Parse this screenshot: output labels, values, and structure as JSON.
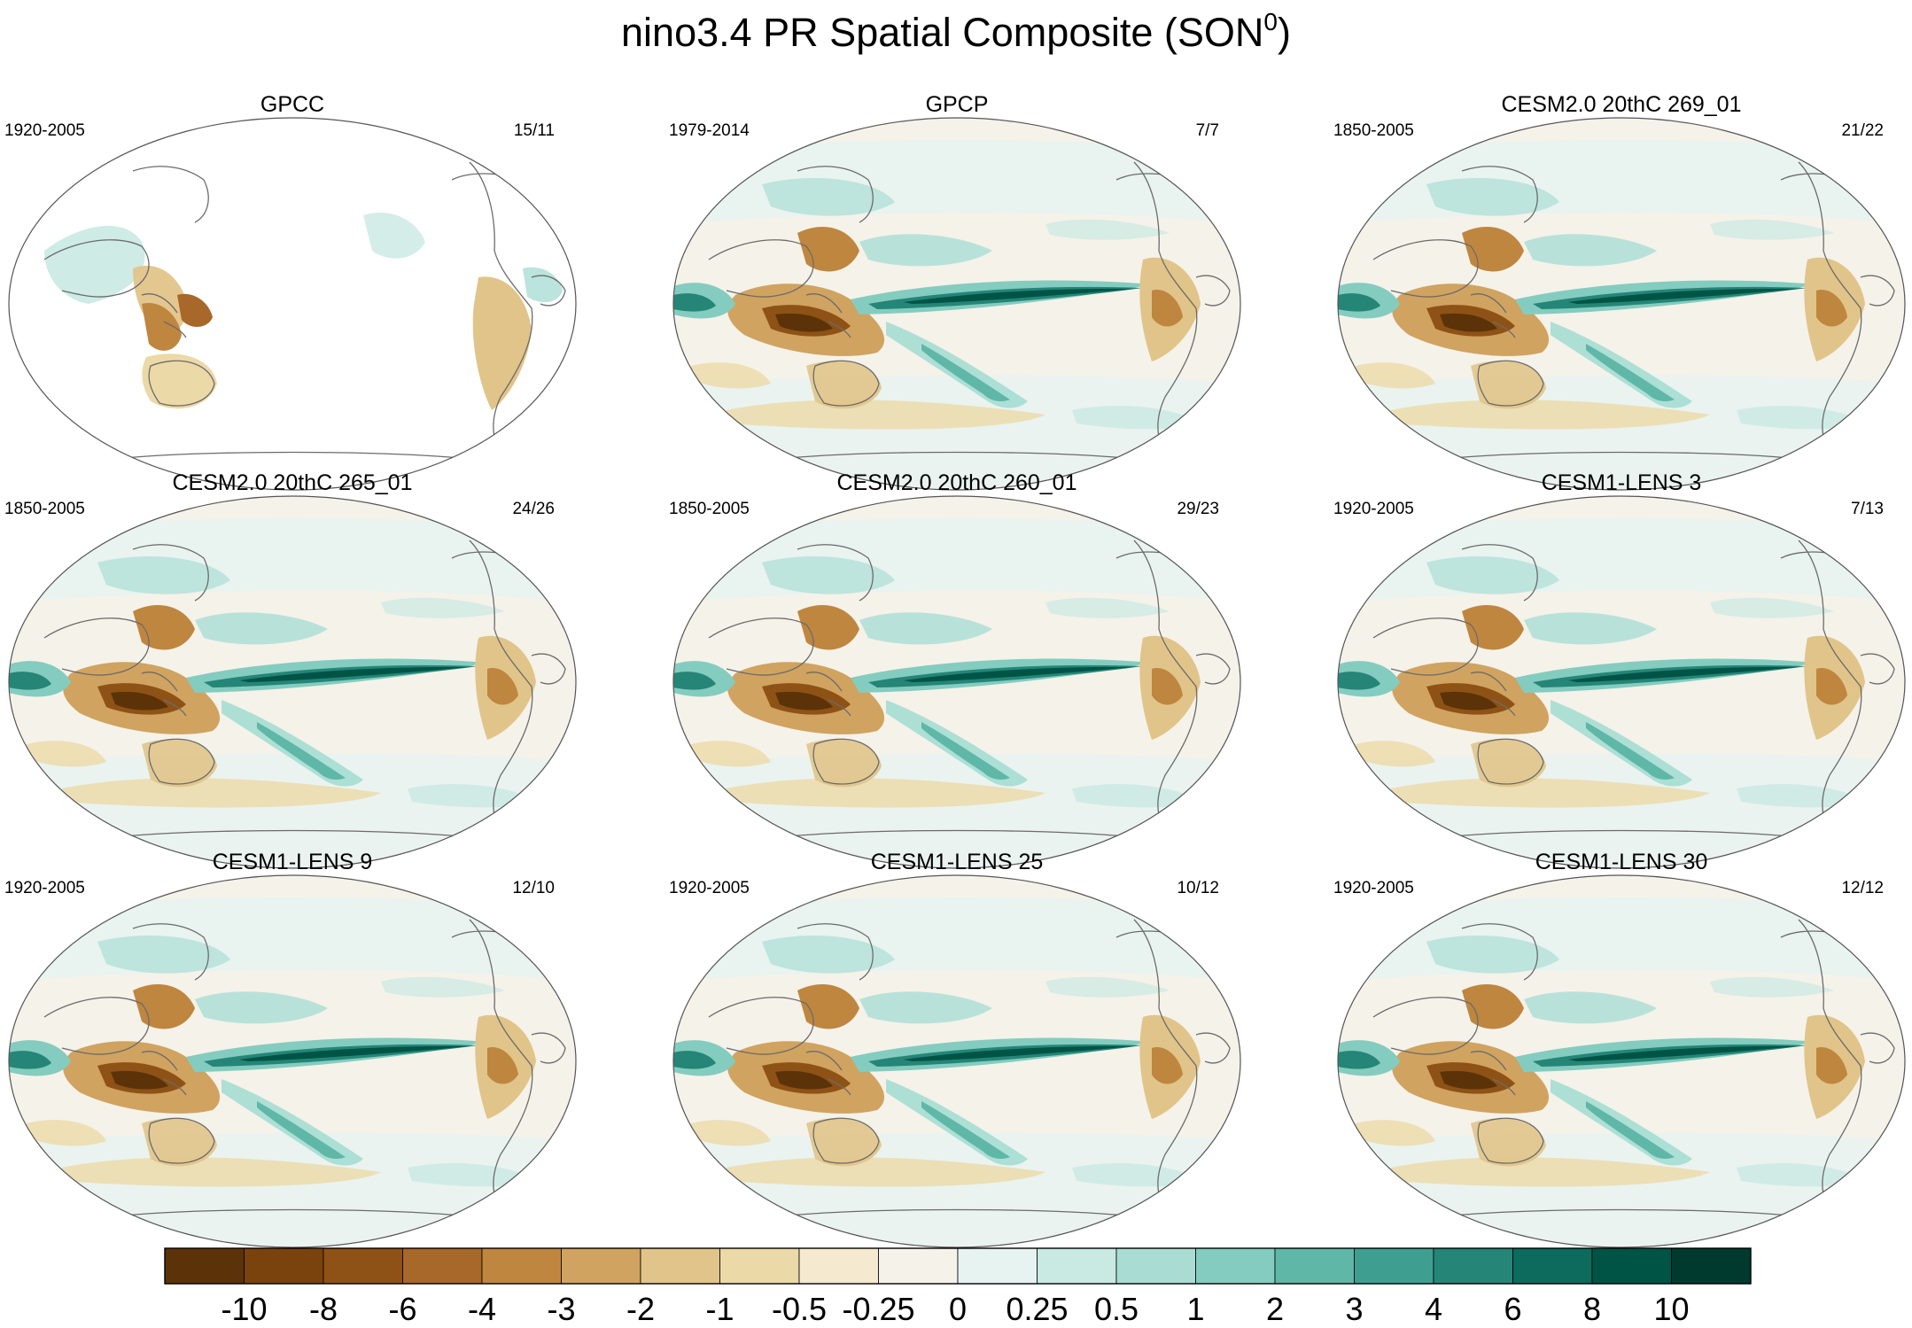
{
  "chart_data": {
    "type": "heatmap",
    "title": "nino3.4 PR Spatial Composite (SON",
    "title_superscript": "0",
    "title_close": ")",
    "panels": [
      {
        "name": "GPCC",
        "years": "1920-2005",
        "counts": "15/11"
      },
      {
        "name": "GPCP",
        "years": "1979-2014",
        "counts": "7/7"
      },
      {
        "name": "CESM2.0 20thC 269_01",
        "years": "1850-2005",
        "counts": "21/22"
      },
      {
        "name": "CESM2.0 20thC 265_01",
        "years": "1850-2005",
        "counts": "24/26"
      },
      {
        "name": "CESM2.0 20thC 260_01",
        "years": "1850-2005",
        "counts": "29/23"
      },
      {
        "name": "CESM1-LENS 3",
        "years": "1920-2005",
        "counts": "7/13"
      },
      {
        "name": "CESM1-LENS 9",
        "years": "1920-2005",
        "counts": "12/10"
      },
      {
        "name": "CESM1-LENS 25",
        "years": "1920-2005",
        "counts": "10/12"
      },
      {
        "name": "CESM1-LENS 30",
        "years": "1920-2005",
        "counts": "12/12"
      }
    ],
    "colorbar": {
      "levels": [
        "-10",
        "-8",
        "-6",
        "-4",
        "-3",
        "-2",
        "-1",
        "-0.5",
        "-0.25",
        "0",
        "0.25",
        "0.5",
        "1",
        "2",
        "3",
        "4",
        "6",
        "8",
        "10"
      ],
      "colors": [
        "#5c3308",
        "#7a430e",
        "#8e5216",
        "#a8682a",
        "#bf8640",
        "#d0a360",
        "#e1c489",
        "#ecd9a8",
        "#f5ead0",
        "#f5f2ea",
        "#e6f3f1",
        "#c9e9e3",
        "#a9ddd4",
        "#84ccc0",
        "#5fb7a8",
        "#3e9f90",
        "#258577",
        "#0c6b5d",
        "#005446",
        "#003a2e"
      ]
    }
  }
}
